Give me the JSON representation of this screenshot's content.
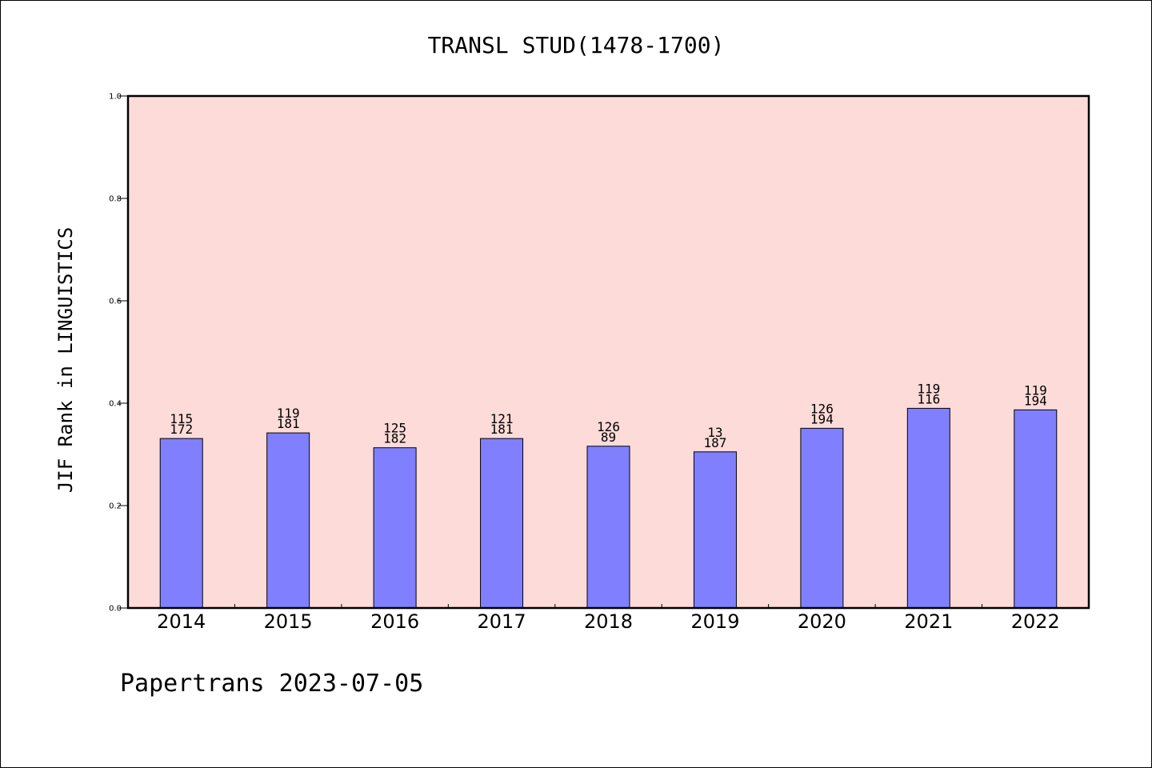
{
  "chart_data": {
    "type": "bar",
    "title": "TRANSL STUD(1478-1700)",
    "ylabel": "JIF Rank in LINGUISTICS",
    "xlabel": "",
    "ylim": [
      0,
      1.0
    ],
    "yticks": [
      "0.0",
      "0.2",
      "0.4",
      "0.6",
      "0.8",
      "1.0"
    ],
    "categories": [
      "2014",
      "2015",
      "2016",
      "2017",
      "2018",
      "2019",
      "2020",
      "2021",
      "2022"
    ],
    "values": [
      0.331,
      0.342,
      0.313,
      0.331,
      0.316,
      0.305,
      0.351,
      0.39,
      0.387
    ],
    "label_top": [
      "115",
      "119",
      "125",
      "121",
      "126",
      "13",
      "126",
      "119",
      "119"
    ],
    "label_bottom": [
      "172",
      "181",
      "182",
      "181",
      "89",
      "187",
      "194",
      "116",
      "194"
    ],
    "grid": false,
    "plot_background": "#fddbd8",
    "bar_color": "#8080ff",
    "footer": "Papertrans 2023-07-05"
  }
}
